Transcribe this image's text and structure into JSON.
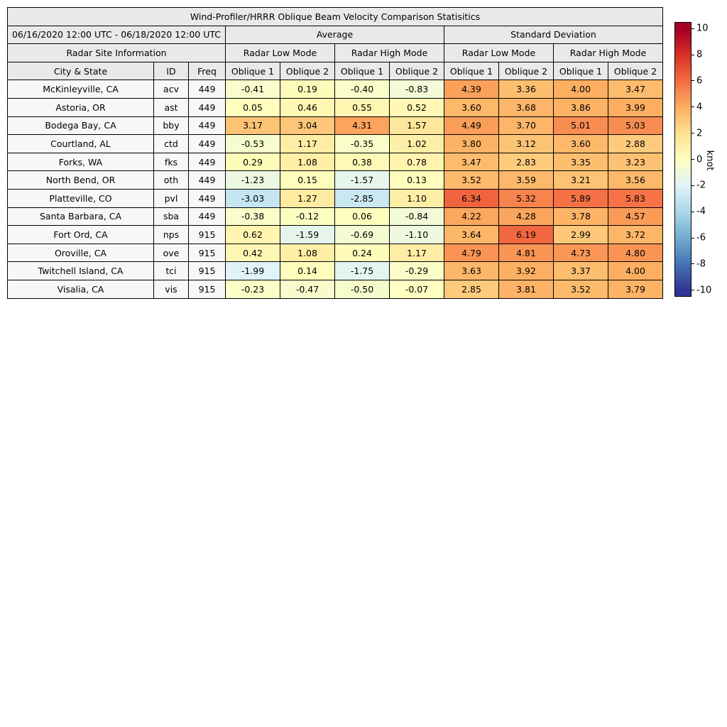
{
  "chart_data": {
    "type": "table",
    "subtype": "heatmap-table",
    "title": "Wind-Profiler/HRRR Oblique Beam Velocity Comparison Statisitics",
    "date_range": "06/16/2020 12:00 UTC - 06/18/2020 12:00 UTC",
    "top_groups": [
      "Average",
      "Standard Deviation"
    ],
    "mode_groups": [
      "Radar Site Information",
      "Radar Low Mode",
      "Radar High Mode",
      "Radar Low Mode",
      "Radar High Mode"
    ],
    "columns": [
      "City & State",
      "ID",
      "Freq",
      "Oblique 1",
      "Oblique 2",
      "Oblique 1",
      "Oblique 2",
      "Oblique 1",
      "Oblique 2",
      "Oblique 1",
      "Oblique 2"
    ],
    "rows": [
      {
        "city": "McKinleyville, CA",
        "id": "acv",
        "freq": "449",
        "values": [
          -0.41,
          0.19,
          -0.4,
          -0.83,
          4.39,
          3.36,
          4.0,
          3.47
        ]
      },
      {
        "city": "Astoria, OR",
        "id": "ast",
        "freq": "449",
        "values": [
          0.05,
          0.46,
          0.55,
          0.52,
          3.6,
          3.68,
          3.86,
          3.99
        ]
      },
      {
        "city": "Bodega Bay, CA",
        "id": "bby",
        "freq": "449",
        "values": [
          3.17,
          3.04,
          4.31,
          1.57,
          4.49,
          3.7,
          5.01,
          5.03
        ]
      },
      {
        "city": "Courtland, AL",
        "id": "ctd",
        "freq": "449",
        "values": [
          -0.53,
          1.17,
          -0.35,
          1.02,
          3.8,
          3.12,
          3.6,
          2.88
        ]
      },
      {
        "city": "Forks, WA",
        "id": "fks",
        "freq": "449",
        "values": [
          0.29,
          1.08,
          0.38,
          0.78,
          3.47,
          2.83,
          3.35,
          3.23
        ]
      },
      {
        "city": "North Bend, OR",
        "id": "oth",
        "freq": "449",
        "values": [
          -1.23,
          0.15,
          -1.57,
          0.13,
          3.52,
          3.59,
          3.21,
          3.56
        ]
      },
      {
        "city": "Platteville, CO",
        "id": "pvl",
        "freq": "449",
        "values": [
          -3.03,
          1.27,
          -2.85,
          1.1,
          6.34,
          5.32,
          5.89,
          5.83
        ]
      },
      {
        "city": "Santa Barbara, CA",
        "id": "sba",
        "freq": "449",
        "values": [
          -0.38,
          -0.12,
          0.06,
          -0.84,
          4.22,
          4.28,
          3.78,
          4.57
        ]
      },
      {
        "city": "Fort Ord, CA",
        "id": "nps",
        "freq": "915",
        "values": [
          0.62,
          -1.59,
          -0.69,
          -1.1,
          3.64,
          6.19,
          2.99,
          3.72
        ]
      },
      {
        "city": "Oroville, CA",
        "id": "ove",
        "freq": "915",
        "values": [
          0.42,
          1.08,
          0.24,
          1.17,
          4.79,
          4.81,
          4.73,
          4.8
        ]
      },
      {
        "city": "Twitchell Island, CA",
        "id": "tci",
        "freq": "915",
        "values": [
          -1.99,
          0.14,
          -1.75,
          -0.29,
          3.63,
          3.92,
          3.37,
          4.0
        ]
      },
      {
        "city": "Visalia, CA",
        "id": "vis",
        "freq": "915",
        "values": [
          -0.23,
          -0.47,
          -0.5,
          -0.07,
          2.85,
          3.81,
          3.52,
          3.79
        ]
      }
    ],
    "colorbar": {
      "label": "knot",
      "min": -10,
      "max": 10,
      "ticks": [
        10,
        8,
        6,
        4,
        2,
        0,
        -2,
        -4,
        -6,
        -8,
        -10
      ],
      "colormap": [
        "#313695",
        "#4575b4",
        "#74add1",
        "#abd9e9",
        "#e0f3f8",
        "#ffffbf",
        "#fee090",
        "#fdae61",
        "#f46d43",
        "#d73027",
        "#a50026"
      ]
    }
  }
}
